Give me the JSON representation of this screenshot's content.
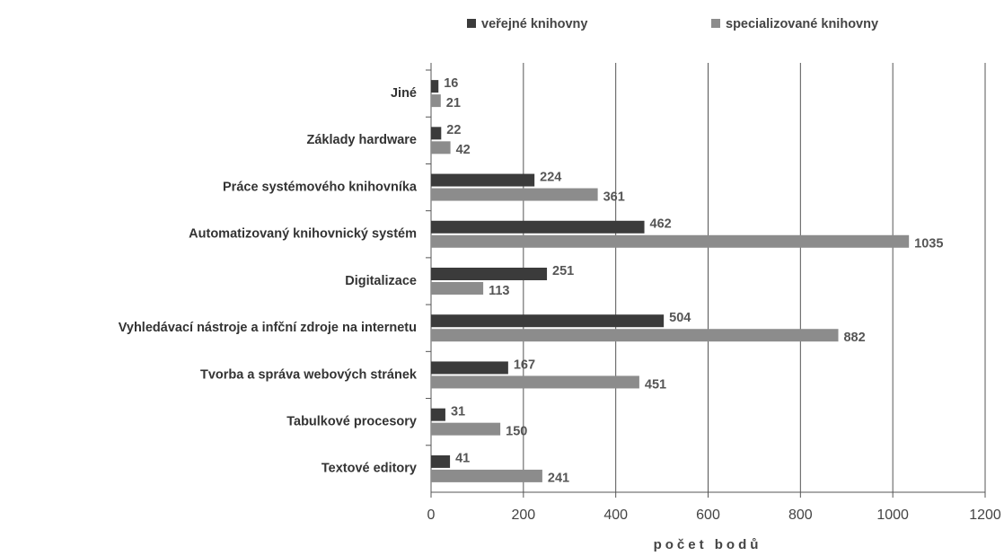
{
  "chart_data": {
    "type": "hbar",
    "xlabel": "počet bodů",
    "categories": [
      "Jiné",
      "Základy hardware",
      "Práce systémového knihovníka",
      "Automatizovaný knihovnický systém",
      "Digitalizace",
      "Vyhledávací nástroje a infční zdroje na internetu",
      "Tvorba a správa webových stránek",
      "Tabulkové procesory",
      "Textové editory"
    ],
    "series": [
      {
        "name": "veřejné knihovny",
        "color": "#3b3b3b",
        "values": [
          16,
          22,
          224,
          462,
          251,
          504,
          167,
          31,
          41
        ]
      },
      {
        "name": "specializované knihovny",
        "color": "#8c8c8c",
        "values": [
          21,
          42,
          361,
          1035,
          113,
          882,
          451,
          150,
          241
        ]
      }
    ],
    "xlim": [
      0,
      1200
    ],
    "xticks": [
      0,
      200,
      400,
      600,
      800,
      1000,
      1200
    ],
    "grid": true
  }
}
